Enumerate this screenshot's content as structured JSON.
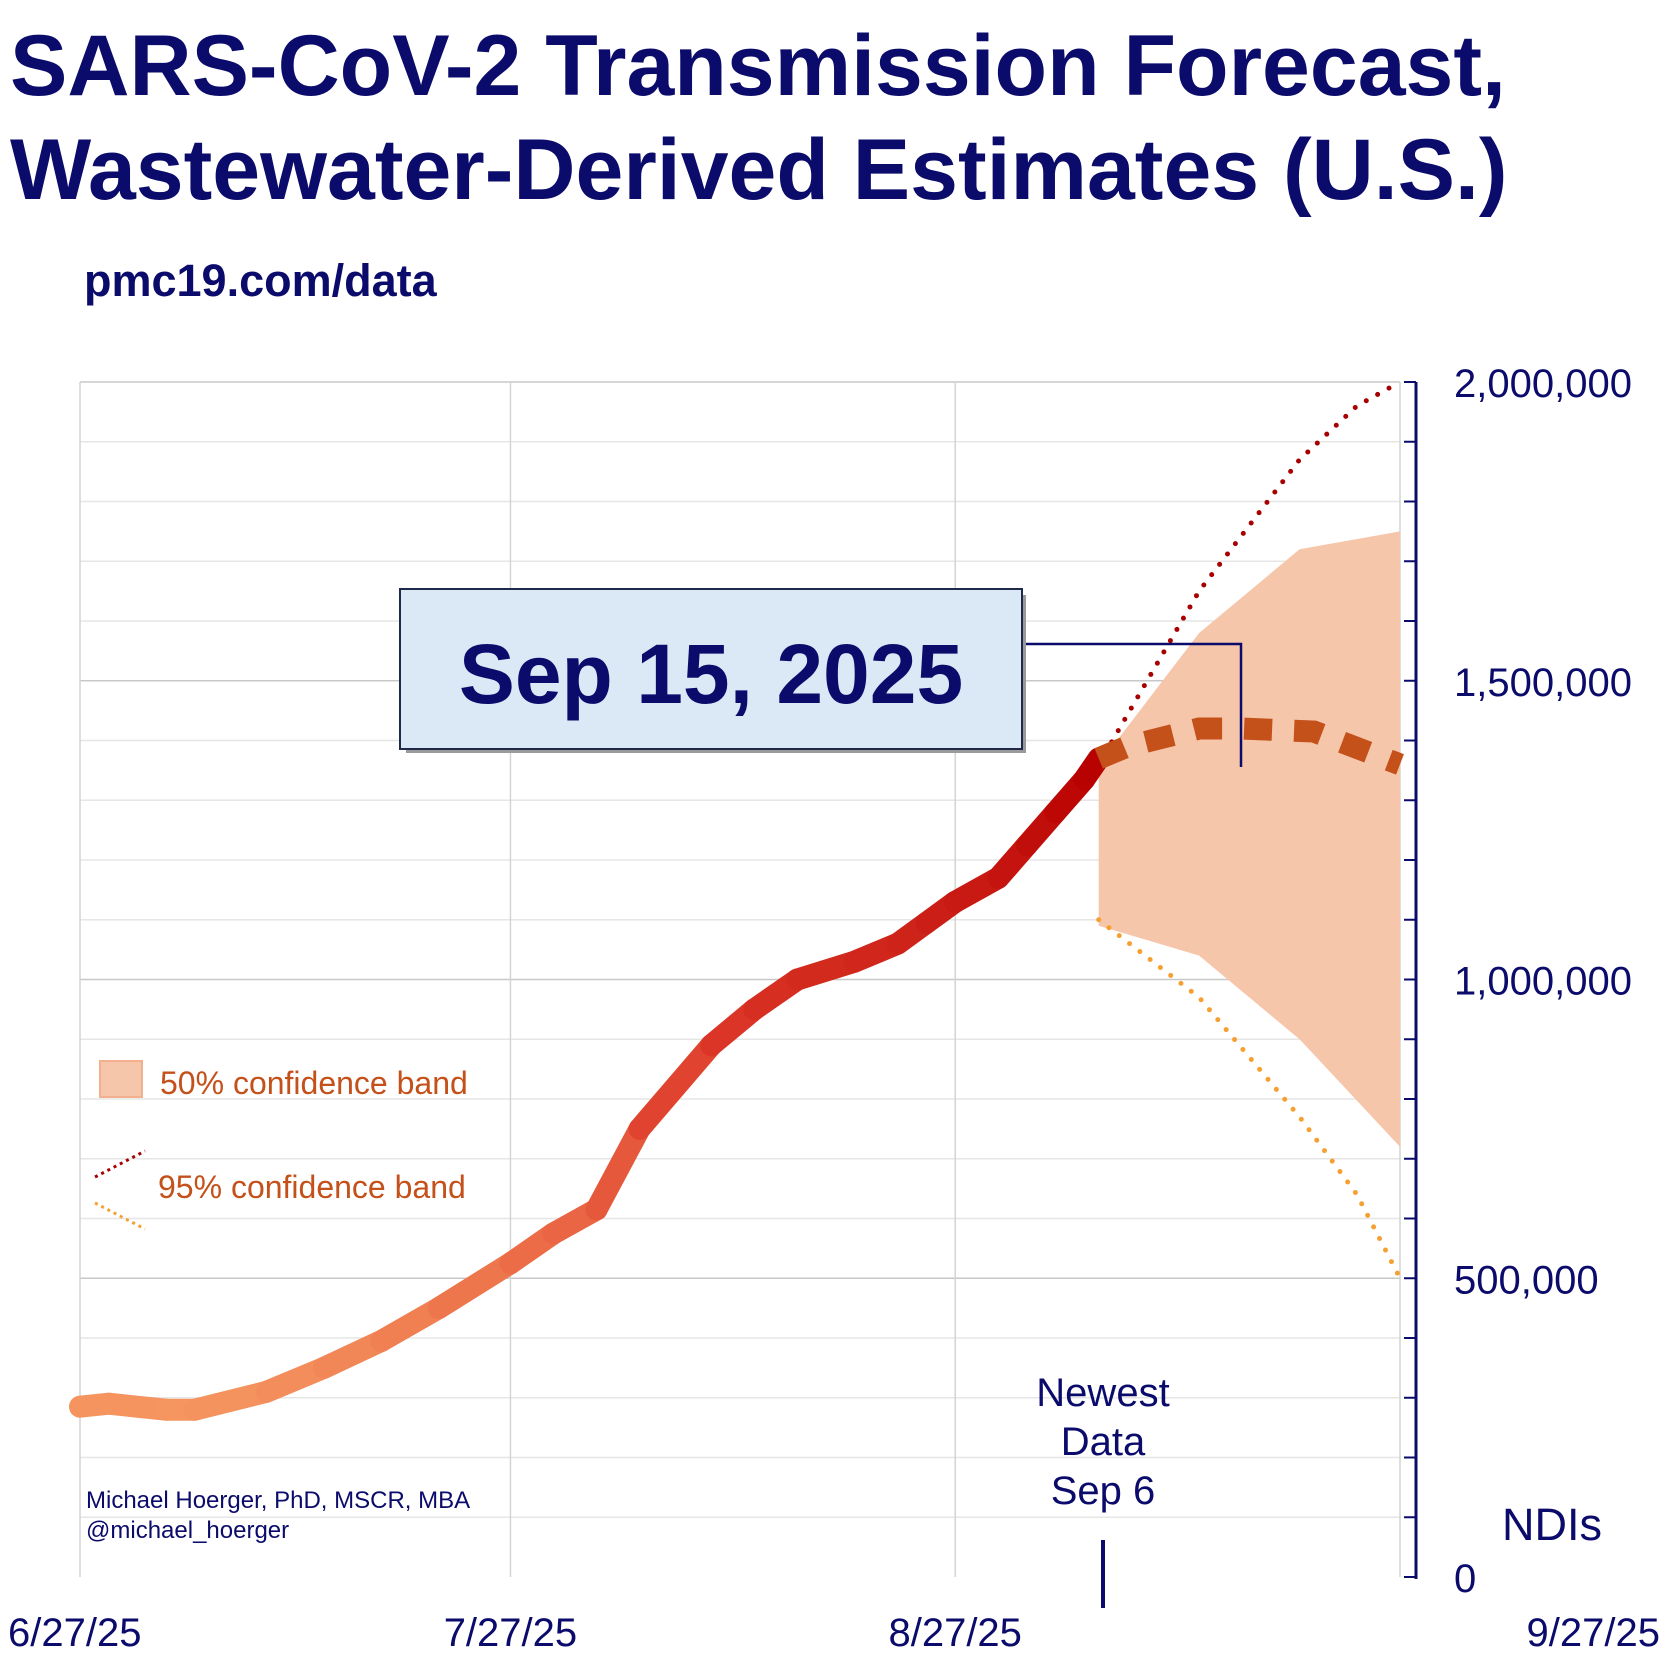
{
  "title_line1": "SARS-CoV-2 Transmission Forecast,",
  "title_line2": "Wastewater-Derived Estimates (U.S.)",
  "subtitle": "pmc19.com/data",
  "callout": "Sep 15, 2025",
  "newest_data": [
    "Newest",
    "Data",
    "Sep 6"
  ],
  "credit": [
    "Michael Hoerger, PhD, MSCR, MBA",
    "@michael_hoerger"
  ],
  "legend": {
    "band50": "50% confidence band",
    "band95": "95% confidence band"
  },
  "colors": {
    "title": "#0b0b6b",
    "band50": "#f6c6ab",
    "band95_upper": "#a80000",
    "band95_lower": "#f5a030",
    "forecast_line": "#c4501a",
    "legend_text": "#c4501a"
  },
  "chart_data": {
    "type": "line",
    "title": "SARS-CoV-2 Transmission Forecast, Wastewater-Derived Estimates (U.S.)",
    "ylabel": "NDIs",
    "ylim": [
      0,
      2000000
    ],
    "xlim": [
      "2025-06-27",
      "2025-09-27"
    ],
    "x_ticks": [
      "6/27/25",
      "7/27/25",
      "8/27/25",
      "9/27/25"
    ],
    "y_ticks": [
      "0",
      "500,000",
      "1,000,000",
      "1,500,000",
      "2,000,000"
    ],
    "y_tick_values": [
      0,
      500000,
      1000000,
      1500000,
      2000000
    ],
    "grid": true,
    "legend_position": "left",
    "series": [
      {
        "name": "",
        "style": "solid",
        "x": [
          "2025-06-27",
          "2025-06-29",
          "2025-07-03",
          "2025-07-05",
          "2025-07-10",
          "2025-07-14",
          "2025-07-18",
          "2025-07-22",
          "2025-07-27",
          "2025-07-30",
          "2025-08-02",
          "2025-08-05",
          "2025-08-10",
          "2025-08-13",
          "2025-08-16",
          "2025-08-20",
          "2025-08-23",
          "2025-08-25",
          "2025-08-27",
          "2025-08-30",
          "2025-09-01",
          "2025-09-03",
          "2025-09-05",
          "2025-09-06"
        ],
        "y": [
          285000,
          290000,
          280000,
          280000,
          310000,
          350000,
          395000,
          450000,
          525000,
          575000,
          615000,
          750000,
          890000,
          950000,
          1000000,
          1030000,
          1060000,
          1095000,
          1130000,
          1170000,
          1225000,
          1280000,
          1335000,
          1370000
        ]
      },
      {
        "name": "",
        "style": "dashed",
        "x": [
          "2025-09-06",
          "2025-09-08",
          "2025-09-13",
          "2025-09-16",
          "2025-09-21",
          "2025-09-27"
        ],
        "y": [
          1370000,
          1390000,
          1420000,
          1420000,
          1415000,
          1360000
        ]
      }
    ],
    "bands": [
      {
        "name": "50% confidence band",
        "x": [
          "2025-09-06",
          "2025-09-13",
          "2025-09-20",
          "2025-09-27"
        ],
        "lower": [
          1090000,
          1040000,
          900000,
          720000
        ],
        "upper": [
          1360000,
          1580000,
          1720000,
          1750000
        ]
      },
      {
        "name": "95% confidence band",
        "x": [
          "2025-09-06",
          "2025-09-13",
          "2025-09-20",
          "2025-09-24",
          "2025-09-27"
        ],
        "lower": [
          1100000,
          970000,
          770000,
          640000,
          500000
        ],
        "upper": [
          1360000,
          1650000,
          1870000,
          1960000,
          2000000
        ]
      }
    ],
    "annotations": [
      {
        "text": "Sep 15, 2025",
        "x": "2025-09-15"
      },
      {
        "text": "Newest Data Sep 6",
        "x": "2025-09-06"
      }
    ]
  }
}
